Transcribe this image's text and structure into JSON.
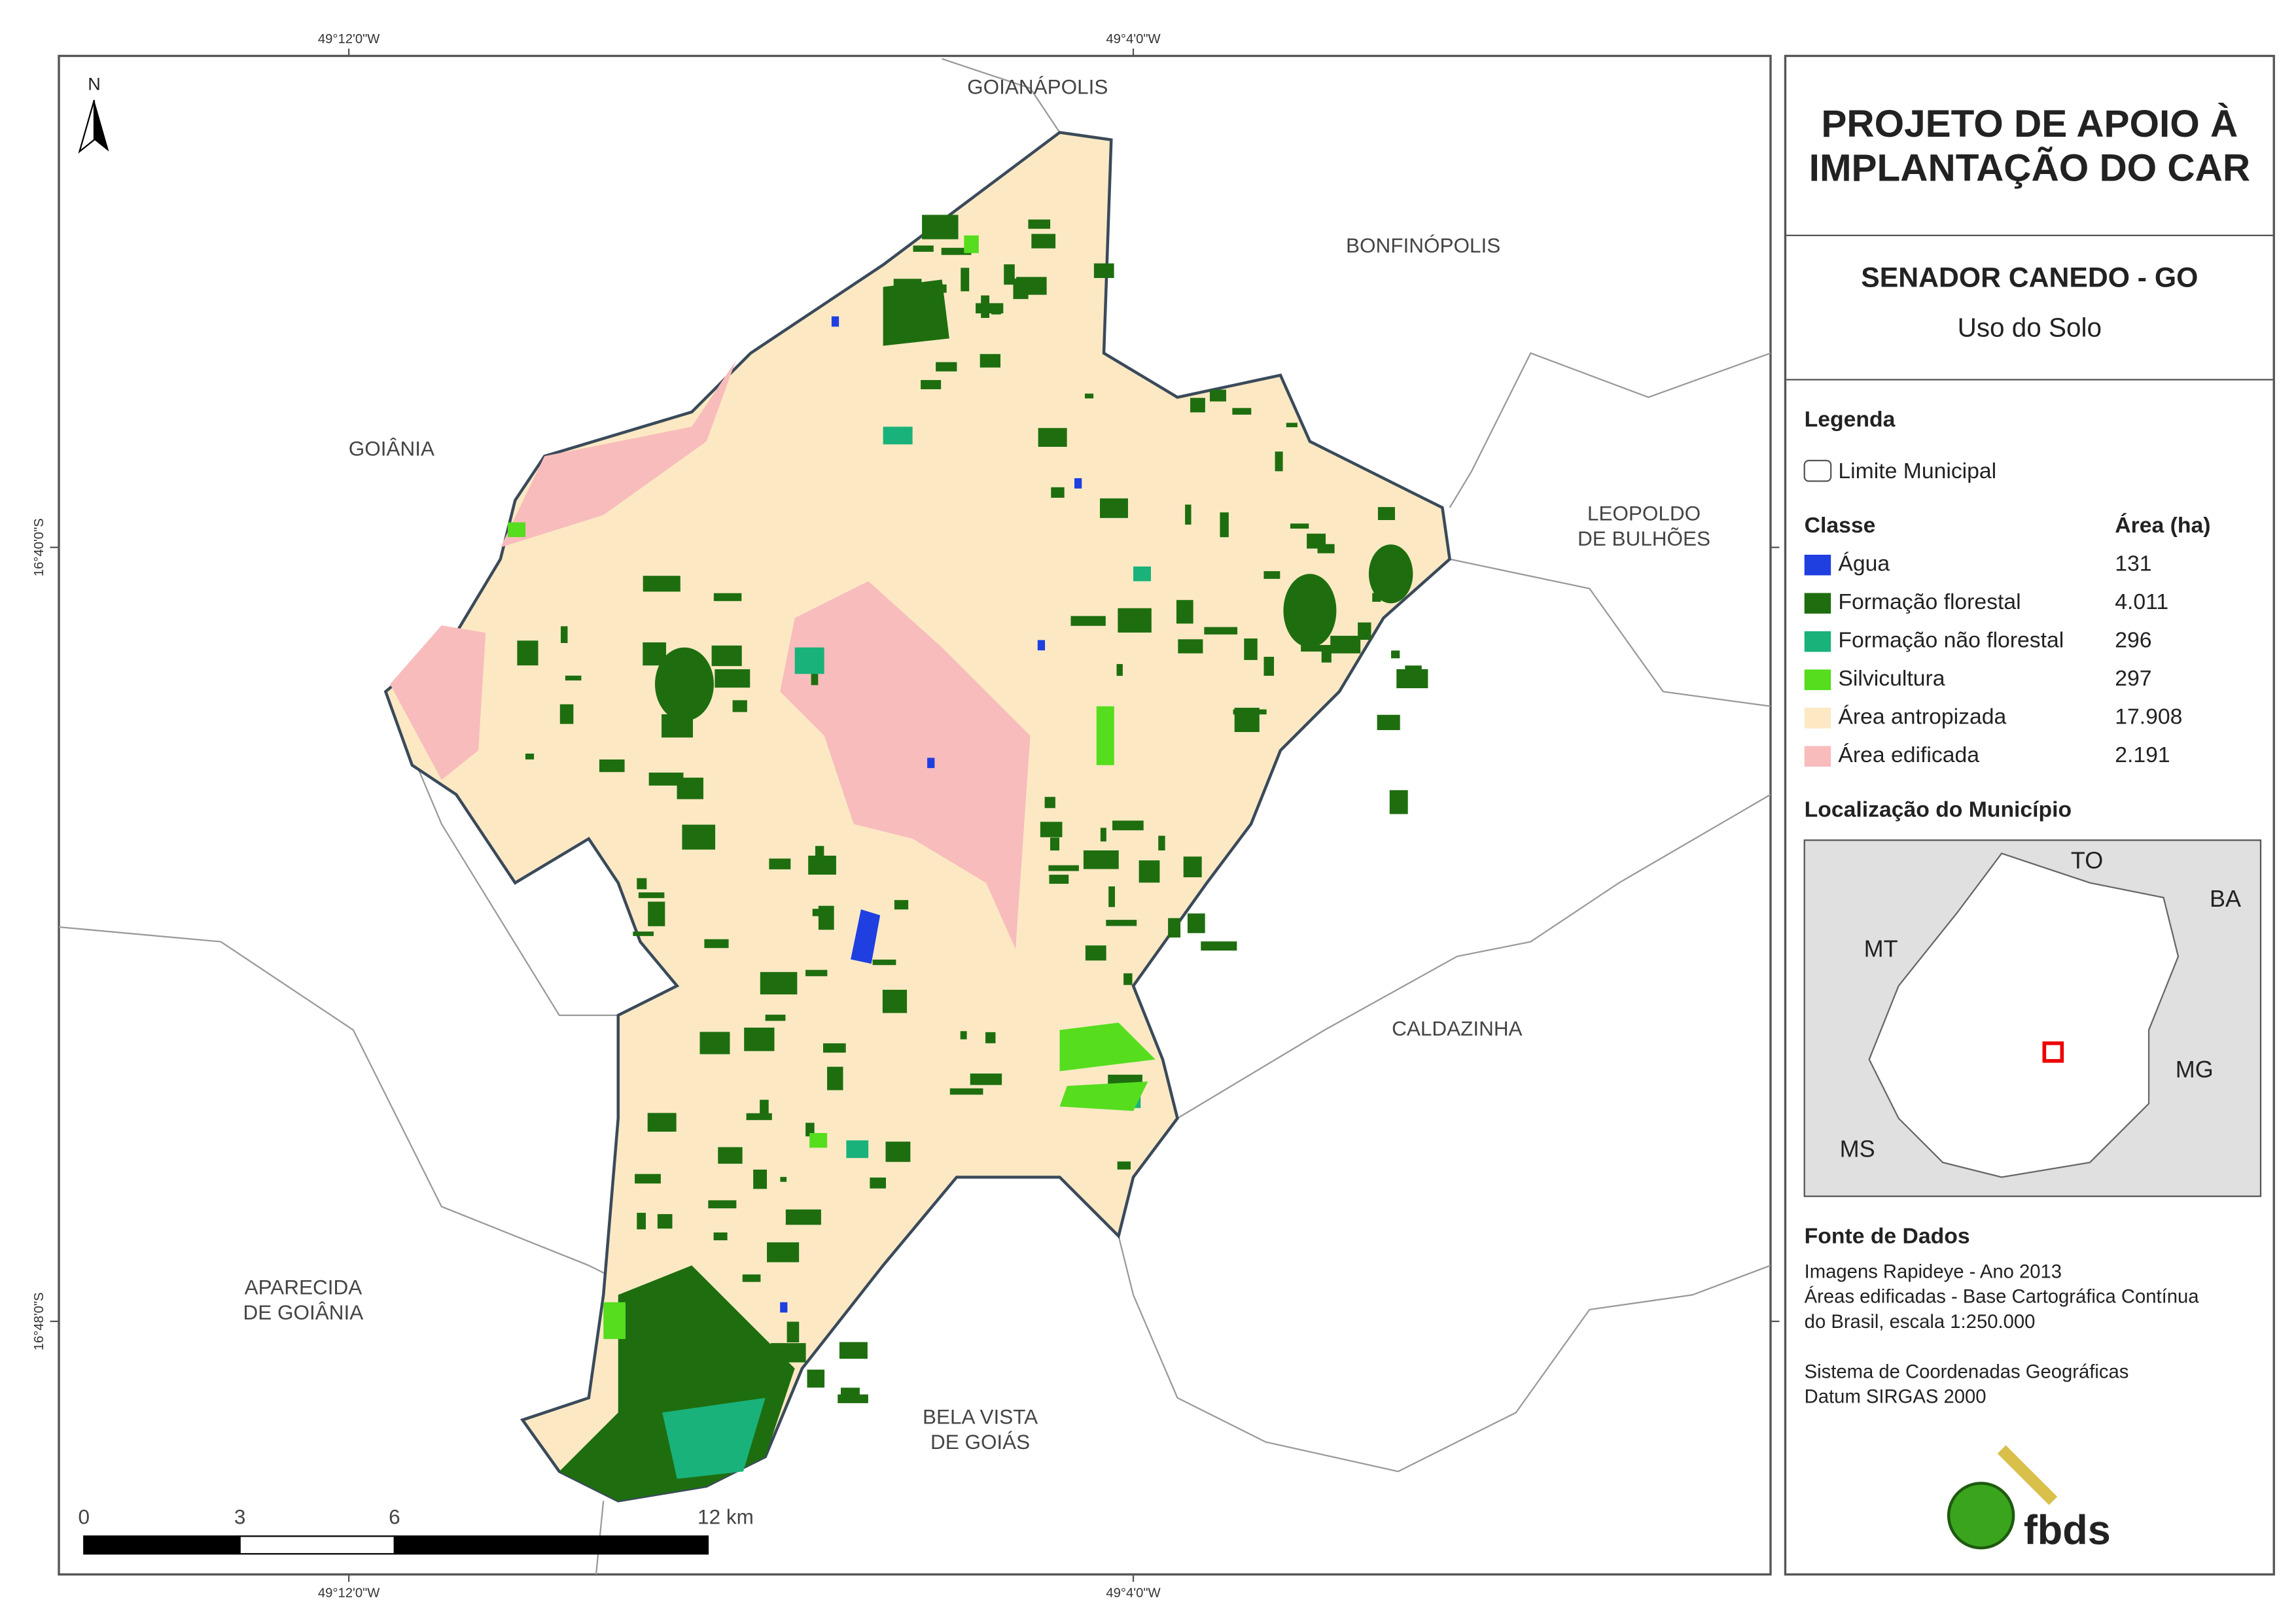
{
  "title": [
    "PROJETO DE APOIO À",
    "IMPLANTAÇÃO DO CAR"
  ],
  "subtitle": "SENADOR CANEDO - GO",
  "theme": "Uso do Solo",
  "coordinates": {
    "top": [
      "49°12'0\"W",
      "49°4'0\"W"
    ],
    "bottom": [
      "49°12'0\"W",
      "49°4'0\"W"
    ],
    "left": [
      "16°40'0\"S",
      "16°48'0\"S"
    ]
  },
  "north": "N",
  "map_labels": [
    [
      "GOIANÁPOLIS"
    ],
    [
      "BONFINÓPOLIS"
    ],
    [
      "GOIÂNIA"
    ],
    [
      "LEOPOLDO",
      "DE BULHÕES"
    ],
    [
      "CALDAZINHA"
    ],
    [
      "APARECIDA",
      "DE GOIÂNIA"
    ],
    [
      "BELA VISTA",
      "DE GOIÁS"
    ]
  ],
  "scale_bar": [
    "0",
    "3",
    "6",
    "12 km"
  ],
  "legend": {
    "heading": "Legenda",
    "boundary": "Limite Municipal",
    "class_header": "Classe",
    "area_header": "Área (ha)",
    "classes": [
      {
        "name": "Água",
        "area": "131",
        "color": "#1f3fe0"
      },
      {
        "name": "Formação florestal",
        "area": "4.011",
        "color": "#1e6e0f"
      },
      {
        "name": "Formação não florestal",
        "area": "296",
        "color": "#19b27a"
      },
      {
        "name": "Silvicultura",
        "area": "297",
        "color": "#55dd1e"
      },
      {
        "name": "Área antropizada",
        "area": "17.908",
        "color": "#fce9c4"
      },
      {
        "name": "Área edificada",
        "area": "2.191",
        "color": "#f8bcbc"
      }
    ]
  },
  "location": {
    "heading": "Localização do Município",
    "labels": [
      "TO",
      "BA",
      "MT",
      "MG",
      "MS"
    ]
  },
  "sources": {
    "heading": "Fonte de Dados",
    "lines": [
      "Imagens Rapideye - Ano 2013",
      "Áreas edificadas - Base Cartográfica Contínua",
      "do Brasil, escala 1:250.000",
      "",
      "Sistema de Coordenadas Geográficas",
      "Datum SIRGAS 2000"
    ]
  },
  "logo": "fbds"
}
